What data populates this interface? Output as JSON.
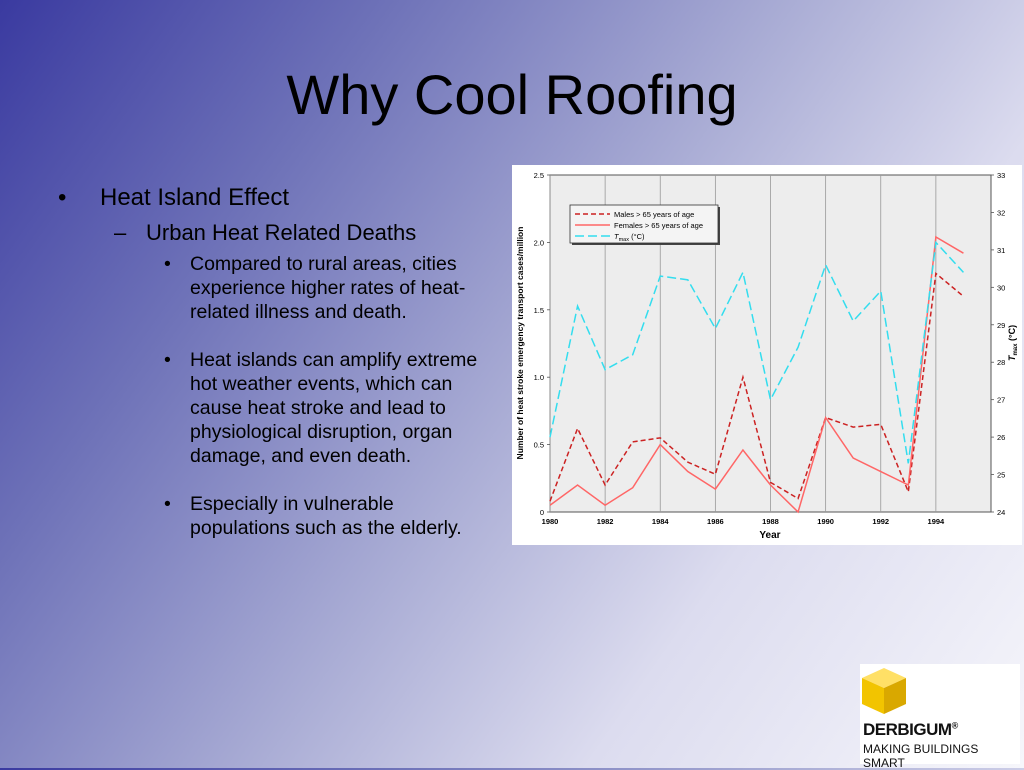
{
  "title": "Why Cool Roofing",
  "bullets": {
    "l1": "Heat Island Effect",
    "l1_mark": "•",
    "l2": "Urban Heat Related Deaths",
    "l2_mark": "–",
    "l3_mark": "•",
    "items": [
      "Compared to rural areas, cities experience higher rates of heat-related illness and death.",
      "Heat islands can amplify extreme hot weather events, which can cause heat stroke and lead to physiological disruption, organ damage, and even death.",
      "Especially in vulnerable populations such as the elderly."
    ]
  },
  "chart_data": {
    "type": "line",
    "x": [
      1980,
      1981,
      1982,
      1983,
      1984,
      1985,
      1986,
      1987,
      1988,
      1989,
      1990,
      1991,
      1992,
      1993,
      1994,
      1995
    ],
    "xticks": [
      "1980",
      "1982",
      "1984",
      "1986",
      "1988",
      "1990",
      "1992",
      "1994"
    ],
    "xlabel": "Year",
    "ylabel": "Number of heat stroke emergency transport cases/million",
    "ylabel_right_main": "T",
    "ylabel_right_sub": "max",
    "ylabel_right_unit": " (°C)",
    "ylim": [
      0,
      2.5
    ],
    "yticks": [
      "0",
      "0.5",
      "1.0",
      "1.5",
      "2.0",
      "2.5"
    ],
    "ylim_right": [
      24,
      33
    ],
    "yticks_right": [
      "24",
      "25",
      "26",
      "27",
      "28",
      "29",
      "30",
      "31",
      "32",
      "33"
    ],
    "legend_position": "top-left",
    "series": [
      {
        "name": "Males > 65 years of age",
        "axis": "left",
        "color": "#cc2222",
        "dash": "dashed",
        "values": [
          0.08,
          0.62,
          0.2,
          0.52,
          0.55,
          0.37,
          0.28,
          1.0,
          0.22,
          0.1,
          0.7,
          0.63,
          0.65,
          0.15,
          1.77,
          1.6
        ]
      },
      {
        "name": "Females > 65 years of age",
        "axis": "left",
        "color": "#ff6666",
        "dash": "solid",
        "values": [
          0.05,
          0.2,
          0.05,
          0.18,
          0.5,
          0.3,
          0.17,
          0.46,
          0.2,
          0.0,
          0.7,
          0.4,
          0.3,
          0.2,
          2.04,
          1.92
        ]
      },
      {
        "name": "Tmax (°C)",
        "name_main": "T",
        "name_sub": "max",
        "name_unit": " (°C)",
        "axis": "right",
        "color": "#33ddee",
        "dash": "dashdash",
        "values": [
          26.0,
          29.5,
          27.8,
          28.2,
          30.3,
          30.2,
          28.9,
          30.4,
          27.0,
          28.4,
          30.6,
          29.1,
          29.9,
          25.3,
          31.2,
          30.4
        ]
      }
    ]
  },
  "logo": {
    "brand": "DERBIGUM",
    "reg": "®",
    "tagline": "MAKING BUILDINGS SMART",
    "cube_top": "#ffe066",
    "cube_left": "#f2c400",
    "cube_right": "#d9a800"
  }
}
